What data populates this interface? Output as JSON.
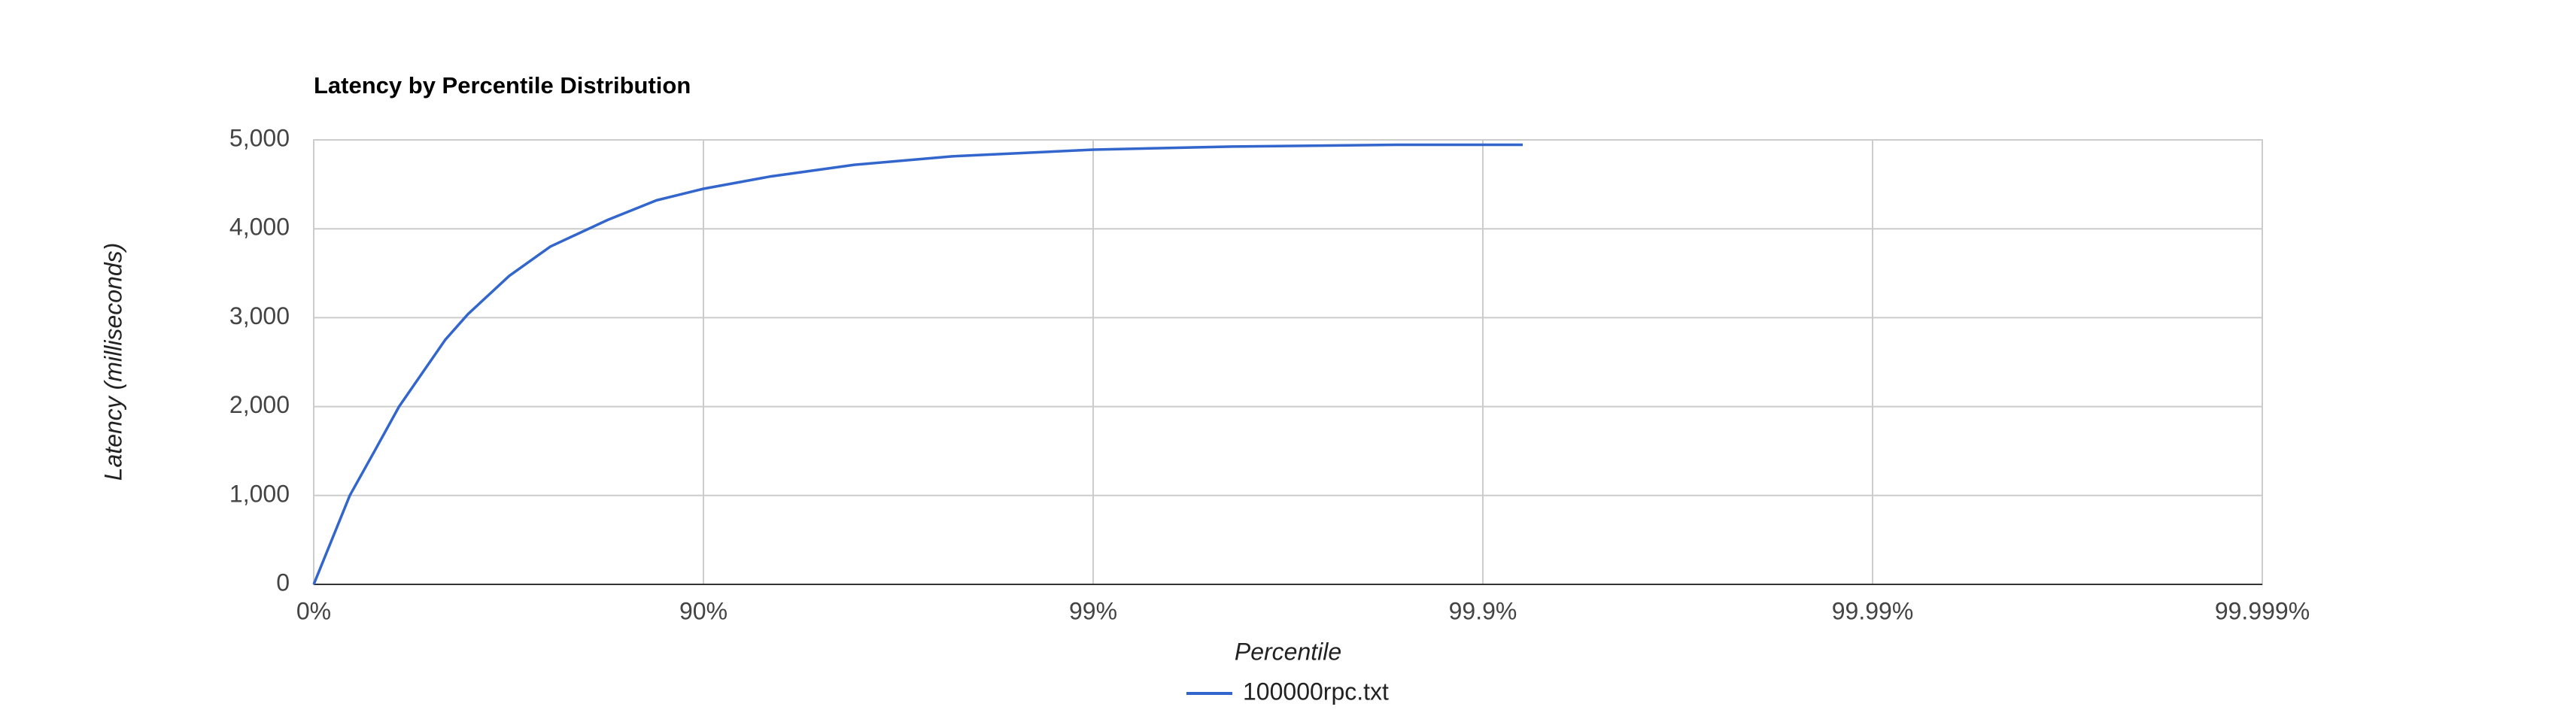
{
  "chart_data": {
    "type": "line",
    "title": "Latency by Percentile Distribution",
    "x_label": "Percentile",
    "y_label": "Latency (milliseconds)",
    "xscale": "inverse-log-percentile",
    "xlim": [
      0,
      99.999
    ],
    "xticks": [
      {
        "value": 0,
        "label": "0%"
      },
      {
        "value": 90,
        "label": "90%"
      },
      {
        "value": 99,
        "label": "99%"
      },
      {
        "value": 99.9,
        "label": "99.9%"
      },
      {
        "value": 99.99,
        "label": "99.99%"
      },
      {
        "value": 99.999,
        "label": "99.999%"
      }
    ],
    "ylim": [
      0,
      5000
    ],
    "yticks": [
      0,
      {
        "value": 1000,
        "label": "1,000"
      },
      {
        "value": 2000,
        "label": "2,000"
      },
      {
        "value": 3000,
        "label": "3,000"
      },
      {
        "value": 4000,
        "label": "4,000"
      },
      {
        "value": 5000,
        "label": "5,000"
      }
    ],
    "grid": true,
    "legend": "bottom",
    "x": [
      0,
      19.2,
      30.2,
      39.6,
      54.0,
      59.8,
      68.5,
      75.3,
      82.4,
      86.8,
      90,
      93.3,
      95.9,
      97.7,
      99,
      99.56,
      99.833,
      99.921
    ],
    "series": [
      {
        "name": "100000rpc.txt",
        "color": "#3366cc",
        "values": [
          0,
          1000,
          1500,
          2000,
          2750,
          3040,
          3470,
          3800,
          4100,
          4320,
          4450,
          4590,
          4720,
          4815,
          4890,
          4925,
          4945,
          4945
        ]
      }
    ]
  }
}
